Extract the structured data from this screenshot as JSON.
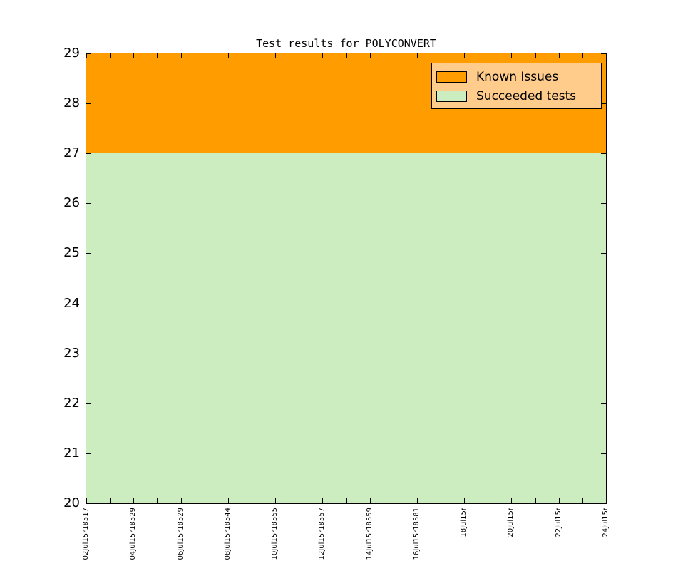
{
  "figure": {
    "background": "#FFFFFF"
  },
  "chart_data": {
    "type": "area",
    "stacked": true,
    "title": "Test results for POLYCONVERT",
    "x_tick_labels": [
      "02Jul15r18517",
      "04Jul15r18529",
      "06Jul15r18529",
      "08Jul15r18544",
      "10Jul15r18555",
      "12Jul15r18557",
      "14Jul15r18559",
      "16Jul15r18581",
      "18Jul15r",
      "20Jul15r",
      "22Jul15r",
      "24Jul15r"
    ],
    "x_minor_ticks_between_labels": 1,
    "ylim": [
      20,
      29
    ],
    "yticks": [
      20,
      21,
      22,
      23,
      24,
      25,
      26,
      27,
      28,
      29
    ],
    "grid": false,
    "series": [
      {
        "name": "Known Issues",
        "color": "#FF9D00",
        "values": [
          2,
          2,
          2,
          2,
          2,
          2,
          2,
          2,
          2,
          2,
          2,
          2
        ]
      },
      {
        "name": "Succeeded tests",
        "color": "#CBEDBF",
        "values": [
          27,
          27,
          27,
          27,
          27,
          27,
          27,
          27,
          27,
          27,
          27,
          27
        ]
      }
    ],
    "legend": {
      "position": "upper right",
      "background": "#FFCC8C",
      "border_color": "#000000",
      "entries": [
        {
          "label": "Known Issues",
          "swatch_color": "#FF9D00"
        },
        {
          "label": "Succeeded tests",
          "swatch_color": "#CBEDBF"
        }
      ]
    }
  }
}
